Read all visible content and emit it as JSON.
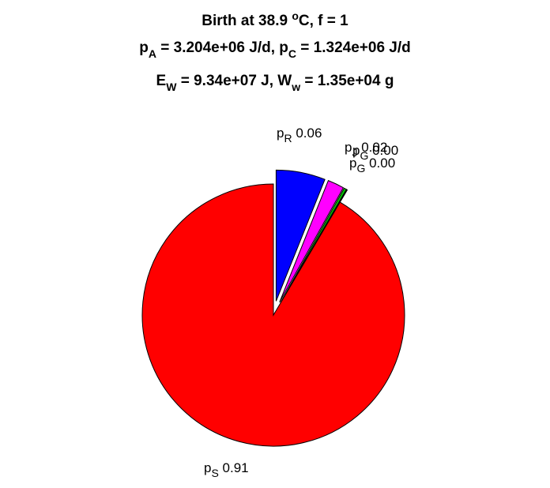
{
  "chart_data": {
    "type": "pie",
    "title": {
      "line1": {
        "prefix": "Birth at 38.9 ",
        "sup": "o",
        "suffix": "C, f = 1"
      },
      "line2": [
        {
          "base": "p",
          "sub": "A",
          "rest": " = 3.204e+06 J/d, "
        },
        {
          "base": "p",
          "sub": "C",
          "rest": " = 1.324e+06 J/d"
        }
      ],
      "line3": [
        {
          "base": "E",
          "sub": "W",
          "rest": " = 9.34e+07 J, "
        },
        {
          "base": "W",
          "sub": "w",
          "rest": " = 1.35e+04 g"
        }
      ]
    },
    "slices": [
      {
        "name": "pR",
        "label_base": "p",
        "label_sub": "R",
        "value_text": "0.06",
        "value": 0.06,
        "color": "#0000ff",
        "exploded": true
      },
      {
        "name": "pJ",
        "label_base": "p",
        "label_sub": "J",
        "value_text": "0.02",
        "value": 0.02,
        "color": "#ff00ff",
        "exploded": true
      },
      {
        "name": "pG",
        "label_base": "p",
        "label_sub": "G",
        "value_text": "0.00",
        "value": 0.003,
        "color": "#00cc00",
        "exploded": true
      },
      {
        "name": "pG2",
        "label_base": "p",
        "label_sub": "G",
        "value_text": "0.00",
        "value": 0.001,
        "color": "#ffff00",
        "exploded": true
      },
      {
        "name": "pS",
        "label_base": "p",
        "label_sub": "S",
        "value_text": "0.91",
        "value": 0.906,
        "color": "#ff0000",
        "exploded": false
      }
    ]
  }
}
